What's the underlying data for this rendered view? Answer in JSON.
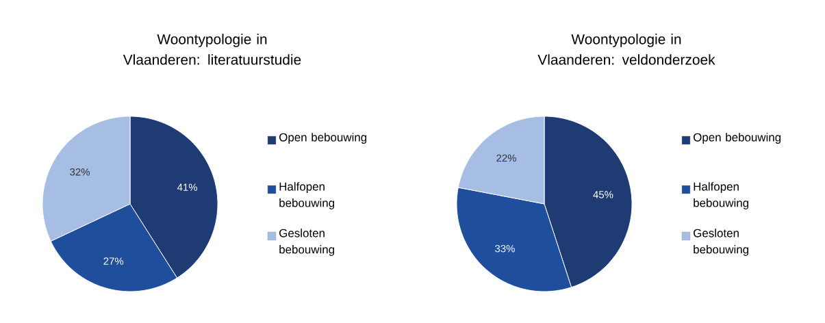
{
  "chart_data": [
    {
      "type": "pie",
      "title": "Woontypologie in Vlaanderen: literatuurstudie",
      "categories": [
        "Open bebouwing",
        "Halfopen bebouwing",
        "Gesloten bebouwing"
      ],
      "values": [
        41,
        27,
        32
      ],
      "value_labels": [
        "41%",
        "27%",
        "32%"
      ],
      "colors": [
        "#1f3b73",
        "#1f4f9c",
        "#a6bee3"
      ],
      "legend": "right"
    },
    {
      "type": "pie",
      "title": "Woontypologie in Vlaanderen: veldonderzoek",
      "categories": [
        "Open bebouwing",
        "Halfopen bebouwing",
        "Gesloten bebouwing"
      ],
      "values": [
        45,
        33,
        22
      ],
      "value_labels": [
        "45%",
        "33%",
        "22%"
      ],
      "colors": [
        "#1f3b73",
        "#1f4f9c",
        "#a6bee3"
      ],
      "legend": "right"
    }
  ]
}
